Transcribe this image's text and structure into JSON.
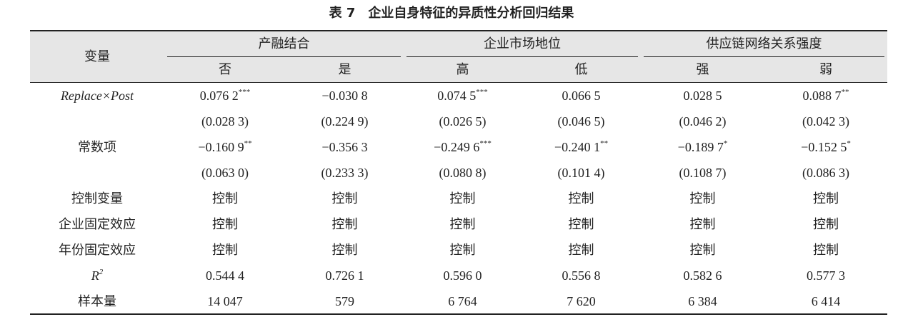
{
  "title": "表 7　企业自身特征的异质性分析回归结果",
  "table": {
    "corner": "变量",
    "groups": [
      {
        "label": "产融结合",
        "subs": [
          "否",
          "是"
        ]
      },
      {
        "label": "企业市场地位",
        "subs": [
          "高",
          "低"
        ]
      },
      {
        "label": "供应链网络关系强度",
        "subs": [
          "强",
          "弱"
        ]
      }
    ],
    "rows": [
      {
        "label": "Replace×Post",
        "italic": true,
        "cells": [
          {
            "value": "0.076 2",
            "sig": "***"
          },
          "−0.030 8",
          {
            "value": "0.074 5",
            "sig": "***"
          },
          "0.066 5",
          "0.028 5",
          {
            "value": "0.088 7",
            "sig": "**"
          }
        ]
      },
      {
        "cells": [
          "(0.028 3)",
          "(0.224 9)",
          "(0.026 5)",
          "(0.046 5)",
          "(0.046 2)",
          "(0.042 3)"
        ]
      },
      {
        "label": "常数项",
        "cells": [
          {
            "value": "−0.160 9",
            "sig": "**"
          },
          "−0.356 3",
          {
            "value": "−0.249 6",
            "sig": "***"
          },
          {
            "value": "−0.240 1",
            "sig": "**"
          },
          {
            "value": "−0.189 7",
            "sig": "*"
          },
          {
            "value": "−0.152 5",
            "sig": "*"
          }
        ]
      },
      {
        "cells": [
          "(0.063 0)",
          "(0.233 3)",
          "(0.080 8)",
          "(0.101 4)",
          "(0.108 7)",
          "(0.086 3)"
        ]
      },
      {
        "label": "控制变量",
        "cells": [
          "控制",
          "控制",
          "控制",
          "控制",
          "控制",
          "控制"
        ]
      },
      {
        "label": "企业固定效应",
        "cells": [
          "控制",
          "控制",
          "控制",
          "控制",
          "控制",
          "控制"
        ]
      },
      {
        "label": "年份固定效应",
        "cells": [
          "控制",
          "控制",
          "控制",
          "控制",
          "控制",
          "控制"
        ]
      },
      {
        "label": {
          "text": "R",
          "sup": "2"
        },
        "italic": true,
        "cells": [
          "0.544 4",
          "0.726 1",
          "0.596 0",
          "0.556 8",
          "0.582 6",
          "0.577 3"
        ]
      },
      {
        "label": "样本量",
        "cells": [
          "14 047",
          "579",
          "6 764",
          "7 620",
          "6 384",
          "6 414"
        ]
      }
    ]
  }
}
